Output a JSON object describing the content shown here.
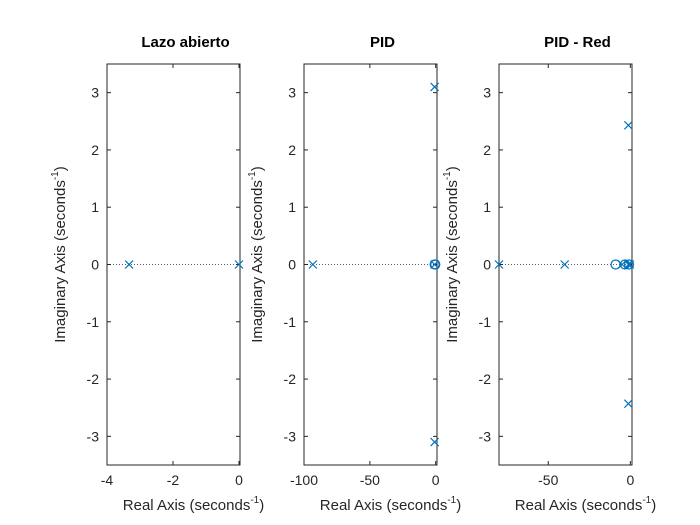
{
  "chart_data": [
    {
      "type": "scatter",
      "title": "Lazo abierto",
      "xlabel": "Real Axis (seconds",
      "ylabel": "Imaginary Axis (seconds",
      "label_exponent": "-1",
      "label_close": ")",
      "xlim": [
        -4,
        0.03
      ],
      "ylim": [
        -3.5,
        3.5
      ],
      "xticks": [
        -4,
        -2,
        0
      ],
      "xtick_labels": [
        "-4",
        "-2",
        "0"
      ],
      "yticks": [
        -3,
        -2,
        -1,
        0,
        1,
        2,
        3
      ],
      "ytick_labels": [
        "-3",
        "-2",
        "-1",
        "0",
        "1",
        "2",
        "3"
      ],
      "poles": [
        [
          -3.33,
          0
        ],
        [
          0,
          0
        ]
      ],
      "zeros": []
    },
    {
      "type": "scatter",
      "title": "PID",
      "xlabel": "Real Axis (seconds",
      "ylabel": "Imaginary Axis (seconds",
      "label_exponent": "-1",
      "label_close": ")",
      "xlim": [
        -100,
        1
      ],
      "ylim": [
        -3.5,
        3.5
      ],
      "xticks": [
        -100,
        -50,
        0
      ],
      "xtick_labels": [
        "-100",
        "-50",
        "0"
      ],
      "yticks": [
        -3,
        -2,
        -1,
        0,
        1,
        2,
        3
      ],
      "ytick_labels": [
        "-3",
        "-2",
        "-1",
        "0",
        "1",
        "2",
        "3"
      ],
      "poles": [
        [
          -93.3,
          0
        ],
        [
          -0.8,
          3.1
        ],
        [
          -0.8,
          -3.1
        ],
        [
          -0.8,
          0
        ]
      ],
      "zeros": [
        [
          -0.8,
          0
        ],
        [
          -0.3,
          0
        ]
      ]
    },
    {
      "type": "scatter",
      "title": "PID - Red",
      "xlabel": "Real Axis (seconds",
      "ylabel": "Imaginary Axis (seconds",
      "label_exponent": "-1",
      "label_close": ")",
      "xlim": [
        -80,
        1
      ],
      "ylim": [
        -3.5,
        3.5
      ],
      "xticks": [
        -50,
        0
      ],
      "xtick_labels": [
        "-50",
        "0"
      ],
      "yticks": [
        -3,
        -2,
        -1,
        0,
        1,
        2,
        3
      ],
      "ytick_labels": [
        "-3",
        "-2",
        "-1",
        "0",
        "1",
        "2",
        "3"
      ],
      "poles": [
        [
          -80,
          0
        ],
        [
          -40,
          0
        ],
        [
          -1.2,
          2.43
        ],
        [
          -1.2,
          -2.43
        ],
        [
          -5,
          0
        ],
        [
          -1.2,
          0
        ],
        [
          -0.3,
          0
        ]
      ],
      "zeros": [
        [
          -9,
          0
        ],
        [
          -3.3,
          0
        ],
        [
          -0.8,
          0
        ]
      ]
    }
  ],
  "colors": {
    "marker": "#0072BD",
    "axis": "#262626",
    "title": "#000000"
  }
}
